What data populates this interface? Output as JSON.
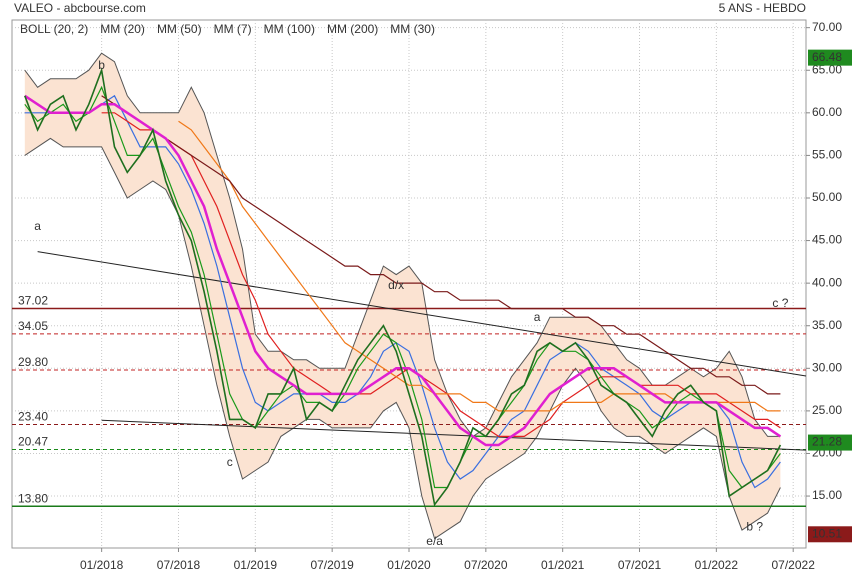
{
  "chart_data": {
    "type": "line",
    "title": "VALEO - abcbourse.com",
    "subtitle": "5 ANS - HEBDO",
    "xlim": [
      "2017-06",
      "2022-08"
    ],
    "xticks": [
      {
        "value": "2018-01",
        "label": "01/2018"
      },
      {
        "value": "2018-07",
        "label": "07/2018"
      },
      {
        "value": "2019-01",
        "label": "01/2019"
      },
      {
        "value": "2019-07",
        "label": "07/2019"
      },
      {
        "value": "2020-01",
        "label": "01/2020"
      },
      {
        "value": "2020-07",
        "label": "07/2020"
      },
      {
        "value": "2021-01",
        "label": "01/2021"
      },
      {
        "value": "2021-07",
        "label": "07/2021"
      },
      {
        "value": "2022-01",
        "label": "01/2022"
      },
      {
        "value": "2022-07",
        "label": "07/2022"
      }
    ],
    "ylim": [
      8.9,
      70.9
    ],
    "yticks": [
      {
        "value": 15,
        "label": "15.00"
      },
      {
        "value": 20,
        "label": "20.00"
      },
      {
        "value": 25,
        "label": "25.00"
      },
      {
        "value": 30,
        "label": "30.00"
      },
      {
        "value": 35,
        "label": "35.00"
      },
      {
        "value": 40,
        "label": "40.00"
      },
      {
        "value": 45,
        "label": "45.00"
      },
      {
        "value": 50,
        "label": "50.00"
      },
      {
        "value": 55,
        "label": "55.00"
      },
      {
        "value": 60,
        "label": "60.00"
      },
      {
        "value": 65,
        "label": "65.00"
      },
      {
        "value": 70,
        "label": "70.00"
      }
    ],
    "grid": true,
    "x": [
      "2017-07",
      "2017-08",
      "2017-09",
      "2017-10",
      "2017-11",
      "2017-12",
      "2018-01",
      "2018-02",
      "2018-03",
      "2018-04",
      "2018-05",
      "2018-06",
      "2018-07",
      "2018-08",
      "2018-09",
      "2018-10",
      "2018-11",
      "2018-12",
      "2019-01",
      "2019-02",
      "2019-03",
      "2019-04",
      "2019-05",
      "2019-06",
      "2019-07",
      "2019-08",
      "2019-09",
      "2019-10",
      "2019-11",
      "2019-12",
      "2020-01",
      "2020-02",
      "2020-03",
      "2020-04",
      "2020-05",
      "2020-06",
      "2020-07",
      "2020-08",
      "2020-09",
      "2020-10",
      "2020-11",
      "2020-12",
      "2021-01",
      "2021-02",
      "2021-03",
      "2021-04",
      "2021-05",
      "2021-06",
      "2021-07",
      "2021-08",
      "2021-09",
      "2021-10",
      "2021-11",
      "2021-12",
      "2022-01",
      "2022-02",
      "2022-03",
      "2022-04",
      "2022-05",
      "2022-06"
    ],
    "bollinger": {
      "name": "BOLL (20, 2)",
      "color": "#fbe3d2",
      "line_color": "#555555",
      "upper": [
        65,
        63,
        64,
        64,
        64,
        65,
        67,
        66,
        62,
        60,
        60,
        60,
        60,
        63,
        60,
        55,
        50,
        44,
        34,
        32,
        32,
        31,
        31,
        30,
        30,
        30,
        34,
        38,
        42,
        41,
        42,
        40,
        31,
        27,
        24,
        22,
        23,
        26,
        29,
        31,
        33,
        36,
        36,
        36,
        36,
        35,
        33,
        31,
        30,
        28,
        28,
        29,
        30,
        29,
        30,
        32,
        29,
        24,
        22,
        22
      ],
      "lower": [
        55,
        56,
        57,
        56,
        56,
        56,
        56,
        53,
        50,
        51,
        52,
        51,
        48,
        42,
        35,
        28,
        22,
        17,
        18,
        19,
        22,
        23,
        24,
        24,
        23,
        23,
        23,
        23,
        25,
        26,
        23,
        15,
        10,
        11,
        12,
        15,
        17,
        18,
        19,
        20,
        22,
        25,
        28,
        30,
        28,
        25,
        23,
        22,
        22,
        21,
        20,
        21,
        22,
        23,
        22,
        15,
        11,
        12,
        13,
        16
      ]
    },
    "price": {
      "color": "#1f6f1f",
      "values": [
        62,
        58,
        61,
        62,
        58,
        61,
        65,
        56,
        53,
        55,
        58,
        52,
        48,
        45,
        39,
        32,
        24,
        24,
        23,
        27,
        27,
        30,
        24,
        26,
        25,
        28,
        31,
        33,
        35,
        32,
        27,
        22,
        14,
        16,
        19,
        23,
        22,
        24,
        27,
        28,
        32,
        33,
        32,
        33,
        31,
        28,
        27,
        26,
        24,
        22,
        25,
        27,
        28,
        26,
        25,
        15,
        16,
        17,
        18,
        21
      ]
    },
    "series": [
      {
        "name": "MM (20)",
        "color": "#3a6fe0",
        "values": [
          60,
          60,
          60,
          60,
          60,
          60,
          61,
          62,
          59,
          56,
          56,
          56,
          54,
          51,
          47,
          42,
          36,
          30,
          26,
          25,
          26,
          27,
          27,
          27,
          26,
          26,
          27,
          29,
          32,
          33,
          32,
          28,
          23,
          19,
          17,
          18,
          20,
          22,
          24,
          25,
          28,
          31,
          32,
          33,
          32,
          30,
          29,
          28,
          27,
          25,
          24,
          25,
          26,
          26,
          26,
          24,
          19,
          16,
          17,
          19
        ]
      },
      {
        "name": "MM (50)",
        "color": "#e02020",
        "values": [
          null,
          null,
          null,
          null,
          null,
          null,
          60,
          60,
          59,
          58,
          58,
          57,
          56,
          55,
          52,
          49,
          45,
          41,
          38,
          34,
          32,
          30,
          29,
          28,
          27,
          27,
          27,
          27,
          28,
          29,
          30,
          29,
          28,
          27,
          25,
          24,
          23,
          22,
          22,
          22,
          23,
          24,
          26,
          27,
          28,
          29,
          29,
          29,
          28,
          28,
          28,
          28,
          27,
          27,
          27,
          26,
          25,
          24,
          24,
          23
        ]
      },
      {
        "name": "MM (7)",
        "color": "#1a9a1a",
        "values": [
          61,
          59,
          60,
          61,
          59,
          60,
          63,
          59,
          55,
          55,
          57,
          53,
          49,
          46,
          41,
          34,
          27,
          24,
          23,
          25,
          27,
          28,
          26,
          26,
          25,
          27,
          30,
          32,
          34,
          33,
          29,
          24,
          16,
          16,
          19,
          22,
          22,
          24,
          26,
          28,
          31,
          33,
          32,
          32,
          31,
          29,
          27,
          26,
          25,
          23,
          24,
          26,
          27,
          26,
          25,
          18,
          16,
          17,
          18,
          20
        ]
      },
      {
        "name": "MM (100)",
        "color": "#f07818",
        "values": [
          null,
          null,
          null,
          null,
          null,
          null,
          null,
          null,
          null,
          null,
          null,
          null,
          59,
          58,
          56,
          54,
          52,
          49,
          47,
          45,
          43,
          41,
          39,
          37,
          35,
          33,
          32,
          31,
          30,
          29,
          28,
          28,
          27,
          27,
          27,
          26,
          26,
          25,
          25,
          25,
          25,
          25,
          26,
          26,
          26,
          26,
          27,
          27,
          27,
          27,
          27,
          26,
          26,
          26,
          26,
          26,
          26,
          26,
          25,
          25
        ]
      },
      {
        "name": "MM (200)",
        "color": "#7a1a1a",
        "values": [
          null,
          null,
          null,
          null,
          null,
          null,
          62,
          61,
          60,
          59,
          58,
          57,
          56,
          55,
          54,
          53,
          52,
          50,
          49,
          48,
          47,
          46,
          45,
          44,
          43,
          42,
          42,
          41,
          41,
          40,
          40,
          40,
          39,
          39,
          38,
          38,
          38,
          38,
          37,
          37,
          37,
          37,
          37,
          36,
          36,
          35,
          35,
          34,
          34,
          33,
          32,
          31,
          30,
          30,
          29,
          29,
          28,
          28,
          27,
          27
        ]
      },
      {
        "name": "MM (30)",
        "color": "#e020d0",
        "values": [
          62,
          61,
          60,
          60,
          60,
          60,
          61,
          61,
          60,
          59,
          58,
          57,
          55,
          52,
          49,
          44,
          40,
          36,
          32,
          30,
          29,
          28,
          27,
          27,
          27,
          27,
          27,
          28,
          29,
          30,
          30,
          29,
          27,
          25,
          23,
          22,
          21,
          21,
          22,
          23,
          25,
          27,
          28,
          29,
          30,
          30,
          30,
          29,
          28,
          27,
          26,
          26,
          26,
          26,
          26,
          25,
          24,
          23,
          23,
          22
        ]
      }
    ],
    "levels": [
      {
        "value": 37.02,
        "label": "37.02",
        "color": "#8b1a1a",
        "style": "solid"
      },
      {
        "value": 34.05,
        "label": "34.05",
        "color": "#c02020",
        "style": "dashed"
      },
      {
        "value": 29.8,
        "label": "29.80",
        "color": "#c02020",
        "style": "dashed"
      },
      {
        "value": 23.4,
        "label": "23.40",
        "color": "#8b1a1a",
        "style": "dashed"
      },
      {
        "value": 20.47,
        "label": "20.47",
        "color": "#1a8a1a",
        "style": "dashed"
      },
      {
        "value": 13.8,
        "label": "13.80",
        "color": "#1a7a1a",
        "style": "solid"
      }
    ],
    "trendlines": [
      {
        "x": [
          "2017-08",
          "2022-08"
        ],
        "y": [
          43.7,
          29.1
        ],
        "color": "#222222"
      },
      {
        "x": [
          "2018-01",
          "2022-08"
        ],
        "y": [
          23.9,
          20.4
        ],
        "color": "#222222"
      }
    ],
    "annotations": [
      {
        "text": "a",
        "x": "2017-08",
        "y": 46.6,
        "color": "#9b1b1b"
      },
      {
        "text": "b",
        "x": "2018-01",
        "y": 65.5,
        "color": "#9b1b1b"
      },
      {
        "text": "c",
        "x": "2018-11",
        "y": 18.9,
        "color": "#9b1b1b"
      },
      {
        "text": "d/x",
        "x": "2019-12",
        "y": 39.7,
        "color": "#9b1b1b"
      },
      {
        "text": "e/a",
        "x": "2020-03",
        "y": 9.6,
        "color": "#9b1b1b"
      },
      {
        "text": "a",
        "x": "2020-11",
        "y": 35.9,
        "color": "#1a1a7a"
      },
      {
        "text": "c ?",
        "x": "2022-06",
        "y": 37.6,
        "color": "#1a1a7a"
      },
      {
        "text": "b ?",
        "x": "2022-04",
        "y": 11.3,
        "color": "#1a1a7a"
      }
    ],
    "price_tags": [
      {
        "value": 66.48,
        "color": "#1f8a1f"
      },
      {
        "value": 21.28,
        "color": "#1f8a1f"
      },
      {
        "value": 10.51,
        "color": "#8b1a1a"
      }
    ]
  }
}
